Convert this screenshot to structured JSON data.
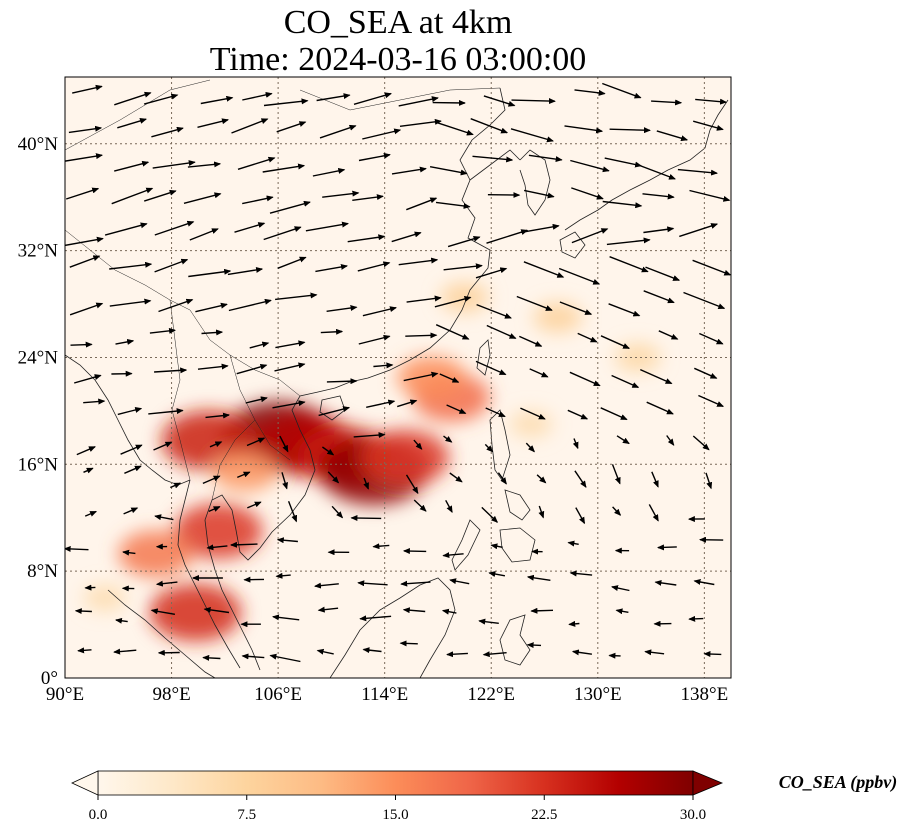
{
  "title": {
    "line1": "CO_SEA at 4km",
    "line2": "Time: 2024-03-16 03:00:00"
  },
  "map": {
    "lon_range": [
      90,
      140
    ],
    "lat_range": [
      0,
      45
    ],
    "lon_ticks": [
      {
        "value": 90,
        "label": "90°E"
      },
      {
        "value": 98,
        "label": "98°E"
      },
      {
        "value": 106,
        "label": "106°E"
      },
      {
        "value": 114,
        "label": "114°E"
      },
      {
        "value": 122,
        "label": "122°E"
      },
      {
        "value": 130,
        "label": "130°E"
      },
      {
        "value": 138,
        "label": "138°E"
      }
    ],
    "lat_ticks": [
      {
        "value": 0,
        "label": "0°"
      },
      {
        "value": 8,
        "label": "8°N"
      },
      {
        "value": 16,
        "label": "16°N"
      },
      {
        "value": 24,
        "label": "24°N"
      },
      {
        "value": 32,
        "label": "32°N"
      },
      {
        "value": 40,
        "label": "40°N"
      }
    ],
    "gridlines": true,
    "background_color": "#fff5eb",
    "coastline_color": "#222222"
  },
  "colorbar": {
    "min": 0.0,
    "max": 30.0,
    "ticks": [
      "0.0",
      "7.5",
      "15.0",
      "22.5",
      "30.0"
    ],
    "label": "CO_SEA (ppbv)",
    "colormap": "OrRd",
    "colors": [
      "#fff7ec",
      "#fee8c8",
      "#fdd49e",
      "#fdbb84",
      "#fc8d59",
      "#ef6548",
      "#d7301f",
      "#b30000",
      "#7f0000"
    ],
    "extend": "both"
  },
  "chart_data": {
    "type": "heatmap",
    "variable": "CO_SEA",
    "units": "ppbv",
    "level": "4km",
    "time": "2024-03-16 03:00:00",
    "plumes": [
      {
        "lon": 106.0,
        "lat": 18.1,
        "value": 30
      },
      {
        "lon": 108.0,
        "lat": 17.5,
        "value": 26
      },
      {
        "lon": 111.0,
        "lat": 16.6,
        "value": 24
      },
      {
        "lon": 113.2,
        "lat": 15.5,
        "value": 29
      },
      {
        "lon": 115.5,
        "lat": 16.5,
        "value": 22
      },
      {
        "lon": 119.0,
        "lat": 21.0,
        "value": 18
      },
      {
        "lon": 117.5,
        "lat": 22.5,
        "value": 15
      },
      {
        "lon": 100.8,
        "lat": 17.8,
        "value": 24
      },
      {
        "lon": 101.5,
        "lat": 11.0,
        "value": 22
      },
      {
        "lon": 96.8,
        "lat": 9.3,
        "value": 17
      },
      {
        "lon": 99.8,
        "lat": 4.9,
        "value": 23
      },
      {
        "lon": 103.5,
        "lat": 15.5,
        "value": 14
      },
      {
        "lon": 120.0,
        "lat": 28.5,
        "value": 8
      },
      {
        "lon": 127.0,
        "lat": 27.0,
        "value": 8
      },
      {
        "lon": 133.0,
        "lat": 24.0,
        "value": 7
      },
      {
        "lon": 125.0,
        "lat": 19.0,
        "value": 6
      },
      {
        "lon": 93.0,
        "lat": 6.0,
        "value": 6
      }
    ]
  }
}
